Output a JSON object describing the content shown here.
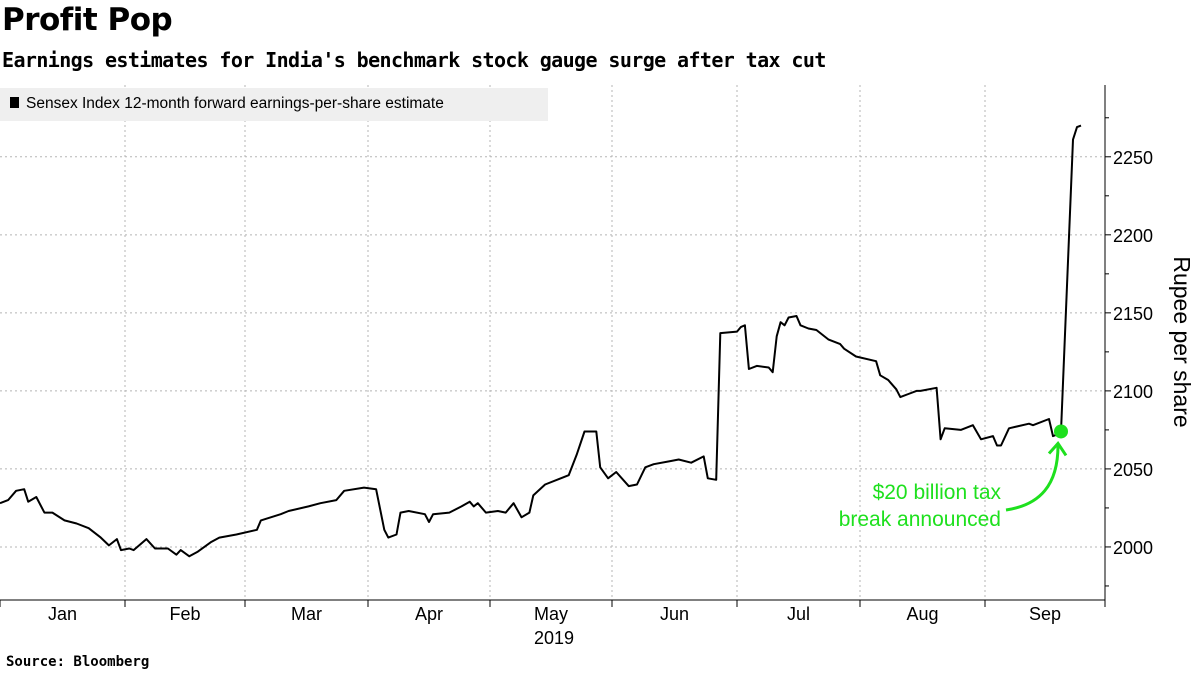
{
  "chart_data": {
    "type": "line",
    "title": "Profit Pop",
    "subtitle": "Earnings estimates for India's benchmark stock gauge surge after tax cut",
    "ylabel": "Rupee per share",
    "xlabel": "2019",
    "ylim": [
      1966,
      2296
    ],
    "yticks": [
      2000,
      2050,
      2100,
      2150,
      2200,
      2250
    ],
    "y_axis_side": "right",
    "xticks": [
      "Jan",
      "Feb",
      "Mar",
      "Apr",
      "May",
      "Jun",
      "Jul",
      "Aug",
      "Sep"
    ],
    "grid": true,
    "legend": {
      "placement": "top-left"
    },
    "series": [
      {
        "name": "Sensex Index 12-month forward earnings-per-share estimate",
        "color": "#000000",
        "points": [
          [
            "2019-01-01",
            2028
          ],
          [
            "2019-01-03",
            2030
          ],
          [
            "2019-01-05",
            2036
          ],
          [
            "2019-01-07",
            2037
          ],
          [
            "2019-01-08",
            2029
          ],
          [
            "2019-01-10",
            2032
          ],
          [
            "2019-01-12",
            2022
          ],
          [
            "2019-01-14",
            2022
          ],
          [
            "2019-01-17",
            2017
          ],
          [
            "2019-01-20",
            2015
          ],
          [
            "2019-01-23",
            2012
          ],
          [
            "2019-01-26",
            2006
          ],
          [
            "2019-01-28",
            2001
          ],
          [
            "2019-01-30",
            2005
          ],
          [
            "2019-01-31",
            1998
          ],
          [
            "2019-02-02",
            1999
          ],
          [
            "2019-02-03",
            1998
          ],
          [
            "2019-02-06",
            2005
          ],
          [
            "2019-02-08",
            1999
          ],
          [
            "2019-02-11",
            1999
          ],
          [
            "2019-02-13",
            1995
          ],
          [
            "2019-02-14",
            1998
          ],
          [
            "2019-02-16",
            1994
          ],
          [
            "2019-02-18",
            1997
          ],
          [
            "2019-02-21",
            2003
          ],
          [
            "2019-02-23",
            2006
          ],
          [
            "2019-02-27",
            2008
          ],
          [
            "2019-03-04",
            2011
          ],
          [
            "2019-03-05",
            2017
          ],
          [
            "2019-03-10",
            2021
          ],
          [
            "2019-03-12",
            2023
          ],
          [
            "2019-03-17",
            2026
          ],
          [
            "2019-03-20",
            2028
          ],
          [
            "2019-03-24",
            2030
          ],
          [
            "2019-03-26",
            2036
          ],
          [
            "2019-03-31",
            2038
          ],
          [
            "2019-04-03",
            2037
          ],
          [
            "2019-04-05",
            2011
          ],
          [
            "2019-04-06",
            2006
          ],
          [
            "2019-04-08",
            2008
          ],
          [
            "2019-04-09",
            2022
          ],
          [
            "2019-04-11",
            2023
          ],
          [
            "2019-04-15",
            2021
          ],
          [
            "2019-04-16",
            2016
          ],
          [
            "2019-04-17",
            2021
          ],
          [
            "2019-04-21",
            2022
          ],
          [
            "2019-04-24",
            2026
          ],
          [
            "2019-04-26",
            2029
          ],
          [
            "2019-04-27",
            2026
          ],
          [
            "2019-04-28",
            2028
          ],
          [
            "2019-04-30",
            2022
          ],
          [
            "2019-05-03",
            2023
          ],
          [
            "2019-05-05",
            2022
          ],
          [
            "2019-05-07",
            2028
          ],
          [
            "2019-05-09",
            2019
          ],
          [
            "2019-05-11",
            2022
          ],
          [
            "2019-05-12",
            2033
          ],
          [
            "2019-05-15",
            2040
          ],
          [
            "2019-05-19",
            2044
          ],
          [
            "2019-05-21",
            2046
          ],
          [
            "2019-05-23",
            2059
          ],
          [
            "2019-05-25",
            2074
          ],
          [
            "2019-05-28",
            2074
          ],
          [
            "2019-05-29",
            2051
          ],
          [
            "2019-05-31",
            2044
          ],
          [
            "2019-06-02",
            2048
          ],
          [
            "2019-06-05",
            2039
          ],
          [
            "2019-06-07",
            2040
          ],
          [
            "2019-06-09",
            2051
          ],
          [
            "2019-06-11",
            2053
          ],
          [
            "2019-06-15",
            2055
          ],
          [
            "2019-06-17",
            2056
          ],
          [
            "2019-06-20",
            2054
          ],
          [
            "2019-06-23",
            2058
          ],
          [
            "2019-06-24",
            2044
          ],
          [
            "2019-06-26",
            2043
          ],
          [
            "2019-06-27",
            2137
          ],
          [
            "2019-07-01",
            2138
          ],
          [
            "2019-07-02",
            2141
          ],
          [
            "2019-07-03",
            2142
          ],
          [
            "2019-07-04",
            2114
          ],
          [
            "2019-07-06",
            2116
          ],
          [
            "2019-07-09",
            2115
          ],
          [
            "2019-07-10",
            2112
          ],
          [
            "2019-07-11",
            2135
          ],
          [
            "2019-07-12",
            2144
          ],
          [
            "2019-07-13",
            2142
          ],
          [
            "2019-07-14",
            2147
          ],
          [
            "2019-07-16",
            2148
          ],
          [
            "2019-07-17",
            2142
          ],
          [
            "2019-07-19",
            2140
          ],
          [
            "2019-07-21",
            2139
          ],
          [
            "2019-07-24",
            2133
          ],
          [
            "2019-07-27",
            2130
          ],
          [
            "2019-07-28",
            2127
          ],
          [
            "2019-07-31",
            2122
          ],
          [
            "2019-08-05",
            2119
          ],
          [
            "2019-08-06",
            2110
          ],
          [
            "2019-08-08",
            2107
          ],
          [
            "2019-08-10",
            2101
          ],
          [
            "2019-08-11",
            2096
          ],
          [
            "2019-08-13",
            2098
          ],
          [
            "2019-08-15",
            2100
          ],
          [
            "2019-08-16",
            2100
          ],
          [
            "2019-08-20",
            2102
          ],
          [
            "2019-08-21",
            2069
          ],
          [
            "2019-08-22",
            2076
          ],
          [
            "2019-08-26",
            2075
          ],
          [
            "2019-08-29",
            2078
          ],
          [
            "2019-08-31",
            2069
          ],
          [
            "2019-09-03",
            2071
          ],
          [
            "2019-09-04",
            2065
          ],
          [
            "2019-09-05",
            2065
          ],
          [
            "2019-09-07",
            2076
          ],
          [
            "2019-09-12",
            2079
          ],
          [
            "2019-09-13",
            2078
          ],
          [
            "2019-09-17",
            2082
          ],
          [
            "2019-09-18",
            2071
          ],
          [
            "2019-09-19",
            2072
          ],
          [
            "2019-09-20",
            2074
          ],
          [
            "2019-09-23",
            2261
          ],
          [
            "2019-09-24",
            2269
          ],
          [
            "2019-09-25",
            2270
          ]
        ]
      }
    ],
    "annotation": {
      "lines": [
        "$20 billion tax",
        "break announced"
      ],
      "date": "2019-09-20",
      "value": 2074,
      "color": "#1ee01e"
    }
  },
  "source": "Source: Bloomberg"
}
